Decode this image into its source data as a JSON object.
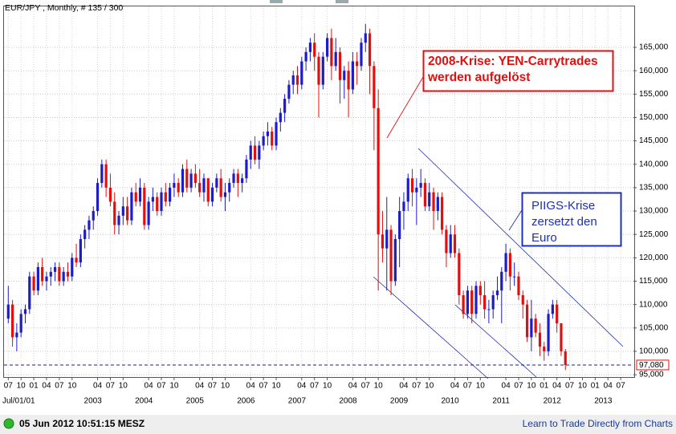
{
  "chart_data": {
    "type": "candlestick",
    "title": "EUR/JPY , Monthly, # 135 / 300",
    "x": [
      "2001-07",
      "2001-08",
      "2001-09",
      "2001-10",
      "2001-11",
      "2001-12",
      "2002-01",
      "2002-02",
      "2002-03",
      "2002-04",
      "2002-05",
      "2002-06",
      "2002-07",
      "2002-08",
      "2002-09",
      "2002-10",
      "2002-11",
      "2002-12",
      "2003-01",
      "2003-02",
      "2003-03",
      "2003-04",
      "2003-05",
      "2003-06",
      "2003-07",
      "2003-08",
      "2003-09",
      "2003-10",
      "2003-11",
      "2003-12",
      "2004-01",
      "2004-02",
      "2004-03",
      "2004-04",
      "2004-05",
      "2004-06",
      "2004-07",
      "2004-08",
      "2004-09",
      "2004-10",
      "2004-11",
      "2004-12",
      "2005-01",
      "2005-02",
      "2005-03",
      "2005-04",
      "2005-05",
      "2005-06",
      "2005-07",
      "2005-08",
      "2005-09",
      "2005-10",
      "2005-11",
      "2005-12",
      "2006-01",
      "2006-02",
      "2006-03",
      "2006-04",
      "2006-05",
      "2006-06",
      "2006-07",
      "2006-08",
      "2006-09",
      "2006-10",
      "2006-11",
      "2006-12",
      "2007-01",
      "2007-02",
      "2007-03",
      "2007-04",
      "2007-05",
      "2007-06",
      "2007-07",
      "2007-08",
      "2007-09",
      "2007-10",
      "2007-11",
      "2007-12",
      "2008-01",
      "2008-02",
      "2008-03",
      "2008-04",
      "2008-05",
      "2008-06",
      "2008-07",
      "2008-08",
      "2008-09",
      "2008-10",
      "2008-11",
      "2008-12",
      "2009-01",
      "2009-02",
      "2009-03",
      "2009-04",
      "2009-05",
      "2009-06",
      "2009-07",
      "2009-08",
      "2009-09",
      "2009-10",
      "2009-11",
      "2009-12",
      "2010-01",
      "2010-02",
      "2010-03",
      "2010-04",
      "2010-05",
      "2010-06",
      "2010-07",
      "2010-08",
      "2010-09",
      "2010-10",
      "2010-11",
      "2010-12",
      "2011-01",
      "2011-02",
      "2011-03",
      "2011-04",
      "2011-05",
      "2011-06",
      "2011-07",
      "2011-08",
      "2011-09",
      "2011-10",
      "2011-11",
      "2011-12",
      "2012-01",
      "2012-02",
      "2012-03",
      "2012-04",
      "2012-05",
      "2012-06"
    ],
    "open": [
      107000,
      110000,
      103000,
      104000,
      108000,
      109000,
      116000,
      113000,
      118000,
      115000,
      116000,
      117000,
      118000,
      115000,
      117000,
      116000,
      120000,
      119000,
      124000,
      126000,
      128000,
      130000,
      136000,
      140000,
      135000,
      132000,
      127000,
      129000,
      131000,
      128000,
      134000,
      132000,
      135000,
      127000,
      132000,
      133000,
      130000,
      134000,
      132000,
      135000,
      136000,
      134000,
      139000,
      135000,
      138000,
      136000,
      134000,
      137000,
      132000,
      135000,
      137000,
      133000,
      134000,
      136000,
      138000,
      136000,
      137000,
      141000,
      144000,
      141000,
      144000,
      146000,
      147000,
      144000,
      149000,
      151000,
      154000,
      157000,
      159000,
      157000,
      162000,
      164000,
      166000,
      163000,
      157000,
      163000,
      167000,
      161000,
      164000,
      158000,
      160000,
      156000,
      162000,
      161000,
      166000,
      168000,
      161000,
      152000,
      125000,
      122000,
      126000,
      115000,
      124000,
      130000,
      132000,
      137000,
      134000,
      135000,
      136000,
      131000,
      134000,
      130000,
      133000,
      126000,
      121000,
      125000,
      121000,
      112000,
      108000,
      113000,
      108000,
      114000,
      112000,
      109000,
      109000,
      112000,
      113000,
      117000,
      121000,
      116000,
      116000,
      112000,
      110000,
      103000,
      107000,
      104000,
      101000,
      100000,
      108000,
      110000,
      106000,
      100000
    ],
    "high": [
      114000,
      111000,
      106000,
      109000,
      110000,
      117000,
      117000,
      119000,
      120000,
      117000,
      118000,
      119000,
      119000,
      118000,
      119000,
      121000,
      123000,
      125000,
      127000,
      129000,
      131000,
      137000,
      141000,
      141000,
      138000,
      134000,
      130000,
      133000,
      133000,
      135000,
      136000,
      137000,
      136000,
      133000,
      135000,
      134000,
      135000,
      136000,
      136000,
      138000,
      137000,
      140000,
      141000,
      139000,
      140000,
      139000,
      138000,
      137000,
      136000,
      138000,
      139000,
      136000,
      137000,
      139000,
      139000,
      138000,
      142000,
      145000,
      146000,
      145000,
      147000,
      149000,
      148000,
      150000,
      152000,
      155000,
      158000,
      160000,
      161000,
      163000,
      165000,
      167000,
      168000,
      164000,
      164000,
      168000,
      169000,
      167000,
      165000,
      161000,
      162000,
      164000,
      164000,
      167000,
      170000,
      169000,
      162000,
      156000,
      130000,
      133000,
      127000,
      125000,
      133000,
      134000,
      138000,
      139000,
      137000,
      139000,
      137000,
      136000,
      135000,
      134000,
      134000,
      127000,
      127000,
      127000,
      122000,
      113000,
      114000,
      114000,
      115000,
      115000,
      115000,
      111000,
      113000,
      116000,
      118000,
      123000,
      122000,
      119000,
      117000,
      113000,
      111000,
      111000,
      108000,
      106000,
      102000,
      109000,
      111000,
      111000,
      106000,
      100500
    ],
    "low": [
      106000,
      101000,
      100000,
      103000,
      106000,
      108000,
      112000,
      112000,
      114000,
      113000,
      114000,
      115000,
      114000,
      114000,
      115000,
      115000,
      118000,
      118000,
      122000,
      124000,
      126000,
      129000,
      135000,
      133000,
      131000,
      125000,
      125000,
      127000,
      127000,
      127000,
      131000,
      131000,
      126000,
      126000,
      130000,
      129000,
      129000,
      131000,
      131000,
      133000,
      133000,
      133000,
      134000,
      134000,
      135000,
      133000,
      132000,
      131000,
      131000,
      134000,
      132000,
      130000,
      132000,
      135000,
      133000,
      134000,
      136000,
      139000,
      140000,
      139000,
      143000,
      144000,
      143000,
      143000,
      147000,
      149000,
      153000,
      155000,
      155000,
      156000,
      160000,
      162000,
      160000,
      150000,
      156000,
      162000,
      158000,
      160000,
      153000,
      154000,
      150000,
      155000,
      157000,
      160000,
      164000,
      155000,
      143000,
      113000,
      119000,
      113000,
      112000,
      114000,
      118000,
      126000,
      130000,
      131000,
      127000,
      133000,
      130000,
      130000,
      126000,
      128000,
      125000,
      118000,
      120000,
      120000,
      110000,
      107000,
      107000,
      106000,
      107000,
      110000,
      107000,
      106000,
      107000,
      111000,
      106000,
      115000,
      113000,
      114000,
      111000,
      107000,
      102000,
      100000,
      103000,
      99000,
      98000,
      99000,
      107000,
      104000,
      99000,
      96000
    ],
    "close": [
      110000,
      103000,
      104000,
      108000,
      109000,
      116000,
      113000,
      118000,
      115000,
      116000,
      117000,
      118000,
      115000,
      117000,
      116000,
      120000,
      119000,
      124000,
      126000,
      128000,
      130000,
      136000,
      140000,
      135000,
      132000,
      127000,
      129000,
      131000,
      128000,
      134000,
      132000,
      135000,
      127000,
      132000,
      133000,
      130000,
      134000,
      132000,
      135000,
      136000,
      134000,
      139000,
      135000,
      138000,
      136000,
      134000,
      137000,
      132000,
      135000,
      137000,
      133000,
      134000,
      136000,
      138000,
      136000,
      137000,
      141000,
      144000,
      141000,
      144000,
      146000,
      147000,
      144000,
      149000,
      151000,
      154000,
      157000,
      159000,
      157000,
      162000,
      164000,
      166000,
      163000,
      157000,
      163000,
      167000,
      161000,
      164000,
      158000,
      160000,
      156000,
      162000,
      161000,
      166000,
      168000,
      161000,
      152000,
      125000,
      122000,
      126000,
      115000,
      124000,
      130000,
      132000,
      137000,
      134000,
      135000,
      136000,
      131000,
      134000,
      130000,
      133000,
      126000,
      121000,
      125000,
      121000,
      112000,
      108000,
      113000,
      108000,
      114000,
      112000,
      109000,
      109000,
      112000,
      113000,
      117000,
      121000,
      116000,
      116000,
      112000,
      110000,
      103000,
      107000,
      104000,
      101000,
      100000,
      108000,
      110000,
      106000,
      100000,
      97080
    ],
    "last_value_label": "97,080",
    "up_color": "#1c1cc8",
    "down_color": "#e01010",
    "xlim": [
      "2001-06",
      "2013-10"
    ],
    "ylim": [
      94500,
      173750
    ],
    "yticks": [
      {
        "value": 95000,
        "label": "95,000"
      },
      {
        "value": 100000,
        "label": "100,000"
      },
      {
        "value": 105000,
        "label": "105,000"
      },
      {
        "value": 110000,
        "label": "110,000"
      },
      {
        "value": 115000,
        "label": "115,000"
      },
      {
        "value": 120000,
        "label": "120,000"
      },
      {
        "value": 125000,
        "label": "125,000"
      },
      {
        "value": 130000,
        "label": "130,000"
      },
      {
        "value": 135000,
        "label": "135,000"
      },
      {
        "value": 140000,
        "label": "140,000"
      },
      {
        "value": 145000,
        "label": "145,000"
      },
      {
        "value": 150000,
        "label": "150,000"
      },
      {
        "value": 155000,
        "label": "155,000"
      },
      {
        "value": 160000,
        "label": "160,000"
      },
      {
        "value": 165000,
        "label": "165,000"
      }
    ],
    "xticks": [
      {
        "value": "2001-07",
        "label": "07"
      },
      {
        "value": "2001-10",
        "label": "10"
      },
      {
        "value": "2002-01",
        "label": "01"
      },
      {
        "value": "2002-04",
        "label": "04"
      },
      {
        "value": "2002-07",
        "label": "07"
      },
      {
        "value": "2002-10",
        "label": "10"
      },
      {
        "value": "2003-04",
        "label": "04"
      },
      {
        "value": "2003-07",
        "label": "07"
      },
      {
        "value": "2003-10",
        "label": "10"
      },
      {
        "value": "2004-04",
        "label": "04"
      },
      {
        "value": "2004-07",
        "label": "07"
      },
      {
        "value": "2004-10",
        "label": "10"
      },
      {
        "value": "2005-04",
        "label": "04"
      },
      {
        "value": "2005-07",
        "label": "07"
      },
      {
        "value": "2005-10",
        "label": "10"
      },
      {
        "value": "2006-04",
        "label": "04"
      },
      {
        "value": "2006-07",
        "label": "07"
      },
      {
        "value": "2006-10",
        "label": "10"
      },
      {
        "value": "2007-04",
        "label": "04"
      },
      {
        "value": "2007-07",
        "label": "07"
      },
      {
        "value": "2007-10",
        "label": "10"
      },
      {
        "value": "2008-04",
        "label": "04"
      },
      {
        "value": "2008-07",
        "label": "07"
      },
      {
        "value": "2008-10",
        "label": "10"
      },
      {
        "value": "2009-04",
        "label": "04"
      },
      {
        "value": "2009-07",
        "label": "07"
      },
      {
        "value": "2009-10",
        "label": "10"
      },
      {
        "value": "2010-04",
        "label": "04"
      },
      {
        "value": "2010-07",
        "label": "07"
      },
      {
        "value": "2010-10",
        "label": "10"
      },
      {
        "value": "2011-04",
        "label": "04"
      },
      {
        "value": "2011-07",
        "label": "07"
      },
      {
        "value": "2011-10",
        "label": "10"
      },
      {
        "value": "2012-01",
        "label": "01"
      },
      {
        "value": "2012-04",
        "label": "04"
      },
      {
        "value": "2012-07",
        "label": "07"
      },
      {
        "value": "2012-10",
        "label": "10"
      },
      {
        "value": "2013-01",
        "label": "01"
      },
      {
        "value": "2013-04",
        "label": "04"
      },
      {
        "value": "2013-07",
        "label": "07"
      }
    ],
    "year_labels": [
      {
        "value": "2001-07",
        "label": "Jul/01/01"
      },
      {
        "value": "2003-01",
        "label": "2003"
      },
      {
        "value": "2004-01",
        "label": "2004"
      },
      {
        "value": "2005-01",
        "label": "2005"
      },
      {
        "value": "2006-01",
        "label": "2006"
      },
      {
        "value": "2007-01",
        "label": "2007"
      },
      {
        "value": "2008-01",
        "label": "2008"
      },
      {
        "value": "2009-01",
        "label": "2009"
      },
      {
        "value": "2010-01",
        "label": "2010"
      },
      {
        "value": "2011-01",
        "label": "2011"
      },
      {
        "value": "2012-01",
        "label": "2012"
      },
      {
        "value": "2013-01",
        "label": "2013"
      }
    ],
    "grid": true,
    "annotations": [
      {
        "lines": [
          "2008-Krise: YEN-Carrytrades",
          "werden aufgelöst"
        ],
        "color": "#e01010"
      },
      {
        "lines": [
          "PIIGS-Krise",
          "zersetzt den",
          "Euro"
        ],
        "color": "#2030b0"
      }
    ]
  },
  "footer": {
    "timestamp": "05 Jun 2012 10:51:15 MESZ",
    "link": "Learn to Trade Directly from Charts"
  }
}
